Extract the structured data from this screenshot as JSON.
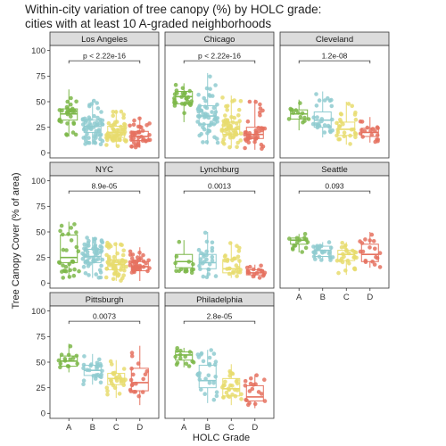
{
  "title_line1": "Within-city variation of tree canopy (%) by HOLC grade:",
  "title_line2": "cities with at least 10 A-graded neighborhoods",
  "chart_data": {
    "type": "boxplot-jitter",
    "xlabel": "HOLC Grade",
    "ylabel": "Tree Canopy Cover (% of area)",
    "ylim": [
      0,
      100
    ],
    "yticks": [
      "0",
      "25",
      "50",
      "75",
      "100"
    ],
    "yticks_values": [
      0,
      25,
      50,
      75,
      100
    ],
    "categories": [
      "A",
      "B",
      "C",
      "D"
    ],
    "colors": {
      "A": "#7cb749",
      "B": "#8fcbd0",
      "C": "#e8dc6f",
      "D": "#e5715f"
    },
    "point_counts": {
      "A": 30,
      "B": 60,
      "C": 60,
      "D": 40
    },
    "facets": [
      {
        "city": "Los Angeles",
        "pvalue": "p < 2.22e-16",
        "boxes": [
          {
            "grade": "A",
            "min": 16,
            "q1": 32,
            "median": 38,
            "q3": 43,
            "max": 62
          },
          {
            "grade": "B",
            "min": 8,
            "q1": 20,
            "median": 26,
            "q3": 32,
            "max": 52
          },
          {
            "grade": "C",
            "min": 6,
            "q1": 15,
            "median": 20,
            "q3": 26,
            "max": 42
          },
          {
            "grade": "D",
            "min": 5,
            "q1": 12,
            "median": 16,
            "q3": 21,
            "max": 35
          }
        ]
      },
      {
        "city": "Chicago",
        "pvalue": "p < 2.22e-16",
        "boxes": [
          {
            "grade": "A",
            "min": 30,
            "q1": 48,
            "median": 55,
            "q3": 60,
            "max": 68
          },
          {
            "grade": "B",
            "min": 8,
            "q1": 28,
            "median": 36,
            "q3": 46,
            "max": 78
          },
          {
            "grade": "C",
            "min": 5,
            "q1": 18,
            "median": 23,
            "q3": 30,
            "max": 56
          },
          {
            "grade": "D",
            "min": 3,
            "q1": 14,
            "median": 18,
            "q3": 25,
            "max": 52
          }
        ]
      },
      {
        "city": "Cleveland",
        "pvalue": "1.2e-08",
        "boxes": [
          {
            "grade": "A",
            "min": 22,
            "q1": 33,
            "median": 38,
            "q3": 42,
            "max": 52
          },
          {
            "grade": "B",
            "min": 15,
            "q1": 25,
            "median": 32,
            "q3": 40,
            "max": 60
          },
          {
            "grade": "C",
            "min": 8,
            "q1": 17,
            "median": 23,
            "q3": 30,
            "max": 50
          },
          {
            "grade": "D",
            "min": 10,
            "q1": 16,
            "median": 20,
            "q3": 24,
            "max": 35
          }
        ]
      },
      {
        "city": "NYC",
        "pvalue": "8.9e-05",
        "boxes": [
          {
            "grade": "A",
            "min": 5,
            "q1": 20,
            "median": 25,
            "q3": 47,
            "max": 60
          },
          {
            "grade": "B",
            "min": 5,
            "q1": 20,
            "median": 26,
            "q3": 33,
            "max": 45
          },
          {
            "grade": "C",
            "min": 2,
            "q1": 13,
            "median": 18,
            "q3": 23,
            "max": 40
          },
          {
            "grade": "D",
            "min": 2,
            "q1": 12,
            "median": 16,
            "q3": 21,
            "max": 35
          }
        ]
      },
      {
        "city": "Lynchburg",
        "pvalue": "0.0013",
        "boxes": [
          {
            "grade": "A",
            "min": 10,
            "q1": 15,
            "median": 21,
            "q3": 28,
            "max": 42
          },
          {
            "grade": "B",
            "min": 5,
            "q1": 14,
            "median": 20,
            "q3": 28,
            "max": 50
          },
          {
            "grade": "C",
            "min": 5,
            "q1": 10,
            "median": 14,
            "q3": 23,
            "max": 40
          },
          {
            "grade": "D",
            "min": 5,
            "q1": 8,
            "median": 10,
            "q3": 13,
            "max": 18
          }
        ]
      },
      {
        "city": "Seattle",
        "pvalue": "0.093",
        "boxes": [
          {
            "grade": "A",
            "min": 30,
            "q1": 38,
            "median": 42,
            "q3": 44,
            "max": 48
          },
          {
            "grade": "B",
            "min": 22,
            "q1": 26,
            "median": 32,
            "q3": 36,
            "max": 40
          },
          {
            "grade": "C",
            "min": 8,
            "q1": 22,
            "median": 28,
            "q3": 32,
            "max": 40
          },
          {
            "grade": "D",
            "min": 15,
            "q1": 21,
            "median": 28,
            "q3": 38,
            "max": 50
          }
        ]
      },
      {
        "city": "Pittsburgh",
        "pvalue": "0.0073",
        "boxes": [
          {
            "grade": "A",
            "min": 40,
            "q1": 46,
            "median": 51,
            "q3": 56,
            "max": 68
          },
          {
            "grade": "B",
            "min": 28,
            "q1": 37,
            "median": 42,
            "q3": 47,
            "max": 58
          },
          {
            "grade": "C",
            "min": 15,
            "q1": 28,
            "median": 34,
            "q3": 39,
            "max": 52
          },
          {
            "grade": "D",
            "min": 8,
            "q1": 22,
            "median": 30,
            "q3": 44,
            "max": 66
          }
        ]
      },
      {
        "city": "Philadelphia",
        "pvalue": "2.8e-05",
        "boxes": [
          {
            "grade": "A",
            "min": 45,
            "q1": 52,
            "median": 57,
            "q3": 60,
            "max": 64
          },
          {
            "grade": "B",
            "min": 10,
            "q1": 25,
            "median": 32,
            "q3": 47,
            "max": 62
          },
          {
            "grade": "C",
            "min": 8,
            "q1": 17,
            "median": 24,
            "q3": 34,
            "max": 48
          },
          {
            "grade": "D",
            "min": 5,
            "q1": 12,
            "median": 16,
            "q3": 27,
            "max": 38
          }
        ]
      }
    ]
  }
}
